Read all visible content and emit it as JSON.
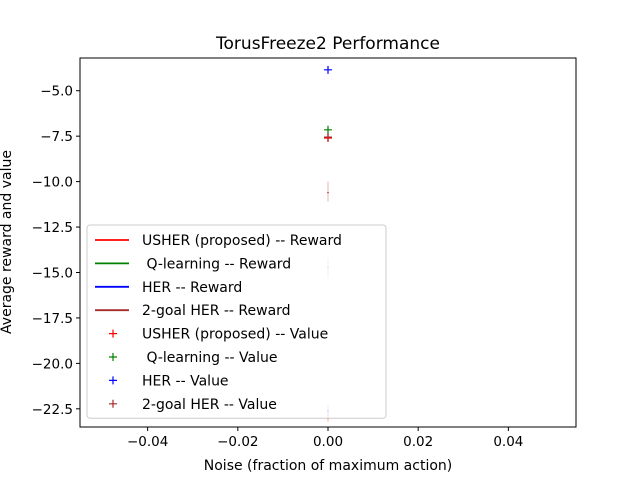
{
  "chart_data": {
    "type": "line",
    "title": "TorusFreeze2 Performance",
    "xlabel": "Noise (fraction of maximum action)",
    "ylabel": "Average reward and value",
    "xlim": [
      -0.055,
      0.055
    ],
    "ylim": [
      -23.5,
      -3.2
    ],
    "xticks": [
      -0.04,
      -0.02,
      0.0,
      0.02,
      0.04
    ],
    "xtick_labels": [
      "−0.04",
      "−0.02",
      "0.00",
      "0.02",
      "0.04"
    ],
    "yticks": [
      -5.0,
      -7.5,
      -10.0,
      -12.5,
      -15.0,
      -17.5,
      -20.0,
      -22.5
    ],
    "ytick_labels": [
      "−5.0",
      "−7.5",
      "−10.0",
      "−12.5",
      "−15.0",
      "−17.5",
      "−20.0",
      "−22.5"
    ],
    "grid": false,
    "legend_position": "lower-left",
    "series": [
      {
        "name": "USHER (proposed) -- Reward",
        "style": "line",
        "color": "#ff0000",
        "x": [
          0.0
        ],
        "y": [
          -23.0
        ],
        "err_low": [
          -23.2
        ],
        "err_high": [
          -22.7
        ]
      },
      {
        "name": " Q-learning -- Reward",
        "style": "line",
        "color": "#008000",
        "x": [
          0.0
        ],
        "y": [
          -14.7
        ],
        "err_low": [
          -15.3
        ],
        "err_high": [
          -14.2
        ]
      },
      {
        "name": "HER -- Reward",
        "style": "line",
        "color": "#0000ff",
        "x": [
          0.0
        ],
        "y": [
          -22.6
        ],
        "err_low": [
          -22.9
        ],
        "err_high": [
          -22.3
        ]
      },
      {
        "name": "2-goal HER -- Reward",
        "style": "line",
        "color": "#a52a2a",
        "x": [
          0.0
        ],
        "y": [
          -10.6
        ],
        "err_low": [
          -11.1
        ],
        "err_high": [
          -10.0
        ]
      },
      {
        "name": "USHER (proposed) -- Value",
        "style": "marker",
        "color": "#ff0000",
        "x": [
          0.0
        ],
        "y": [
          -7.6
        ]
      },
      {
        "name": " Q-learning -- Value",
        "style": "marker",
        "color": "#008000",
        "x": [
          0.0
        ],
        "y": [
          -7.15
        ]
      },
      {
        "name": "HER -- Value",
        "style": "marker",
        "color": "#0000ff",
        "x": [
          0.0
        ],
        "y": [
          -3.85
        ]
      },
      {
        "name": "2-goal HER -- Value",
        "style": "marker",
        "color": "#a52a2a",
        "x": [
          0.0
        ],
        "y": [
          -7.55
        ]
      }
    ]
  }
}
